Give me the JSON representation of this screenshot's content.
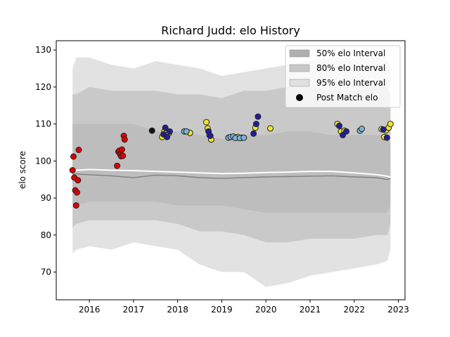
{
  "chart_data": {
    "type": "scatter",
    "title": "Richard Judd: elo History",
    "xlabel": "",
    "ylabel": "elo score",
    "xlim": [
      2015.25,
      2023.15
    ],
    "ylim": [
      62.5,
      132.5
    ],
    "x_ticks": [
      2016,
      2017,
      2018,
      2019,
      2020,
      2021,
      2022,
      2023
    ],
    "x_tick_labels": [
      "2016",
      "2017",
      "2018",
      "2019",
      "2020",
      "2021",
      "2022",
      "2023"
    ],
    "y_ticks": [
      70,
      80,
      90,
      100,
      110,
      120,
      130
    ],
    "y_tick_labels": [
      "70",
      "80",
      "90",
      "100",
      "110",
      "120",
      "130"
    ],
    "legend_position": "top-right",
    "legend": [
      {
        "label": "50% elo Interval",
        "color": "#b0b0b0",
        "kind": "patch"
      },
      {
        "label": "80% elo Interval",
        "color": "#c8c8c8",
        "kind": "patch"
      },
      {
        "label": "95% elo Interval",
        "color": "#e0e0e0",
        "kind": "patch"
      },
      {
        "label": "Post Match elo",
        "color": "#000000",
        "kind": "marker"
      }
    ],
    "colors": {
      "band95": "#e2e2e2",
      "band80": "#c9c9c9",
      "band50": "#bdbdbd",
      "mean_line": "#ffffff",
      "median_line": "#808080",
      "point_red": "#dd0000",
      "point_yellow": "#f2e52a",
      "point_navy": "#1f1f9c",
      "point_lightblue": "#7fb3d5",
      "point_black": "#111111",
      "point_edge": "#222222"
    },
    "bands": {
      "x": [
        2015.62,
        2015.7,
        2016.0,
        2016.5,
        2017.0,
        2017.5,
        2018.0,
        2018.5,
        2019.0,
        2019.5,
        2020.0,
        2020.5,
        2021.0,
        2021.5,
        2022.0,
        2022.5,
        2022.75,
        2022.82
      ],
      "p95_upper": [
        125,
        128,
        128,
        126,
        125,
        127,
        126,
        125,
        123,
        124,
        125,
        126,
        127,
        128,
        128,
        129,
        128,
        125
      ],
      "p95_lower": [
        75,
        76,
        77,
        76,
        78,
        77,
        76,
        72,
        70,
        70,
        66,
        67,
        69,
        70,
        71,
        72,
        73,
        76
      ],
      "p80_upper": [
        118,
        118,
        120,
        119,
        119,
        119,
        118,
        118,
        117,
        119,
        119,
        120,
        120,
        119,
        119,
        120,
        120,
        118
      ],
      "p80_lower": [
        82,
        83,
        84,
        84,
        84,
        84,
        83,
        81,
        81,
        80,
        78,
        78,
        79,
        79,
        79,
        80,
        80,
        83
      ],
      "p50_upper": [
        110,
        110,
        110,
        110,
        110,
        108,
        108,
        107,
        106,
        107,
        107,
        108,
        108,
        107,
        107,
        107,
        107,
        104
      ],
      "p50_lower": [
        88,
        88,
        89,
        89,
        89,
        89,
        88,
        88,
        88,
        87,
        86,
        86,
        86,
        86,
        86,
        86,
        86,
        88
      ],
      "mean": [
        97,
        97.5,
        97.7,
        97.5,
        97.4,
        97.2,
        97,
        96.8,
        96.6,
        96.7,
        96.9,
        97,
        97.2,
        97.2,
        96.8,
        96.3,
        95.9,
        95.6
      ],
      "median": [
        96.5,
        96.5,
        96.3,
        96.0,
        95.5,
        96.2,
        96.0,
        95.5,
        95.3,
        95.5,
        95.7,
        95.8,
        95.9,
        96.0,
        95.7,
        95.5,
        95.0,
        95.3
      ]
    },
    "series": [
      {
        "color_key": "point_red",
        "x": [
          2015.62,
          2015.64,
          2015.66,
          2015.68,
          2015.7,
          2015.72,
          2015.74,
          2015.76,
          2016.63,
          2016.66,
          2016.68,
          2016.7,
          2016.72,
          2016.74,
          2016.76,
          2016.78,
          2016.8
        ],
        "y": [
          97.5,
          101.2,
          95.5,
          92.1,
          88.0,
          91.5,
          94.8,
          103.0,
          98.7,
          102.5,
          102.8,
          101.8,
          101.3,
          103.1,
          101.4,
          106.8,
          105.8
        ]
      },
      {
        "color_key": "point_black",
        "x": [
          2017.42
        ],
        "y": [
          108.2
        ]
      },
      {
        "color_key": "point_yellow",
        "x": [
          2017.65,
          2017.7,
          2017.75,
          2017.8,
          2018.28,
          2018.65,
          2018.68,
          2018.72,
          2018.76,
          2019.36,
          2019.45,
          2019.76,
          2020.1,
          2021.62,
          2021.7,
          2021.78,
          2022.62,
          2022.68,
          2022.72,
          2022.78,
          2022.82
        ],
        "y": [
          106.5,
          108.0,
          107.5,
          107.5,
          107.6,
          110.5,
          108.8,
          107.0,
          105.8,
          106.5,
          106.3,
          109.0,
          108.8,
          110.0,
          108.0,
          108.2,
          108.6,
          106.5,
          108.3,
          109.0,
          110.0
        ]
      },
      {
        "color_key": "point_navy",
        "x": [
          2017.68,
          2017.72,
          2017.76,
          2017.82,
          2018.7,
          2018.74,
          2019.72,
          2019.78,
          2019.82,
          2021.66,
          2021.74,
          2021.82,
          2022.66,
          2022.74
        ],
        "y": [
          107.2,
          109.0,
          106.5,
          108.0,
          108.0,
          106.8,
          107.4,
          110.0,
          112.0,
          109.5,
          107.0,
          108.0,
          108.5,
          106.3
        ]
      },
      {
        "color_key": "point_lightblue",
        "x": [
          2018.15,
          2018.2,
          2019.15,
          2019.2,
          2019.26,
          2019.31,
          2019.41,
          2019.5,
          2022.13,
          2022.17
        ],
        "y": [
          108.0,
          108.0,
          106.3,
          106.5,
          106.6,
          106.2,
          106.2,
          106.3,
          108.2,
          108.7
        ]
      }
    ]
  }
}
